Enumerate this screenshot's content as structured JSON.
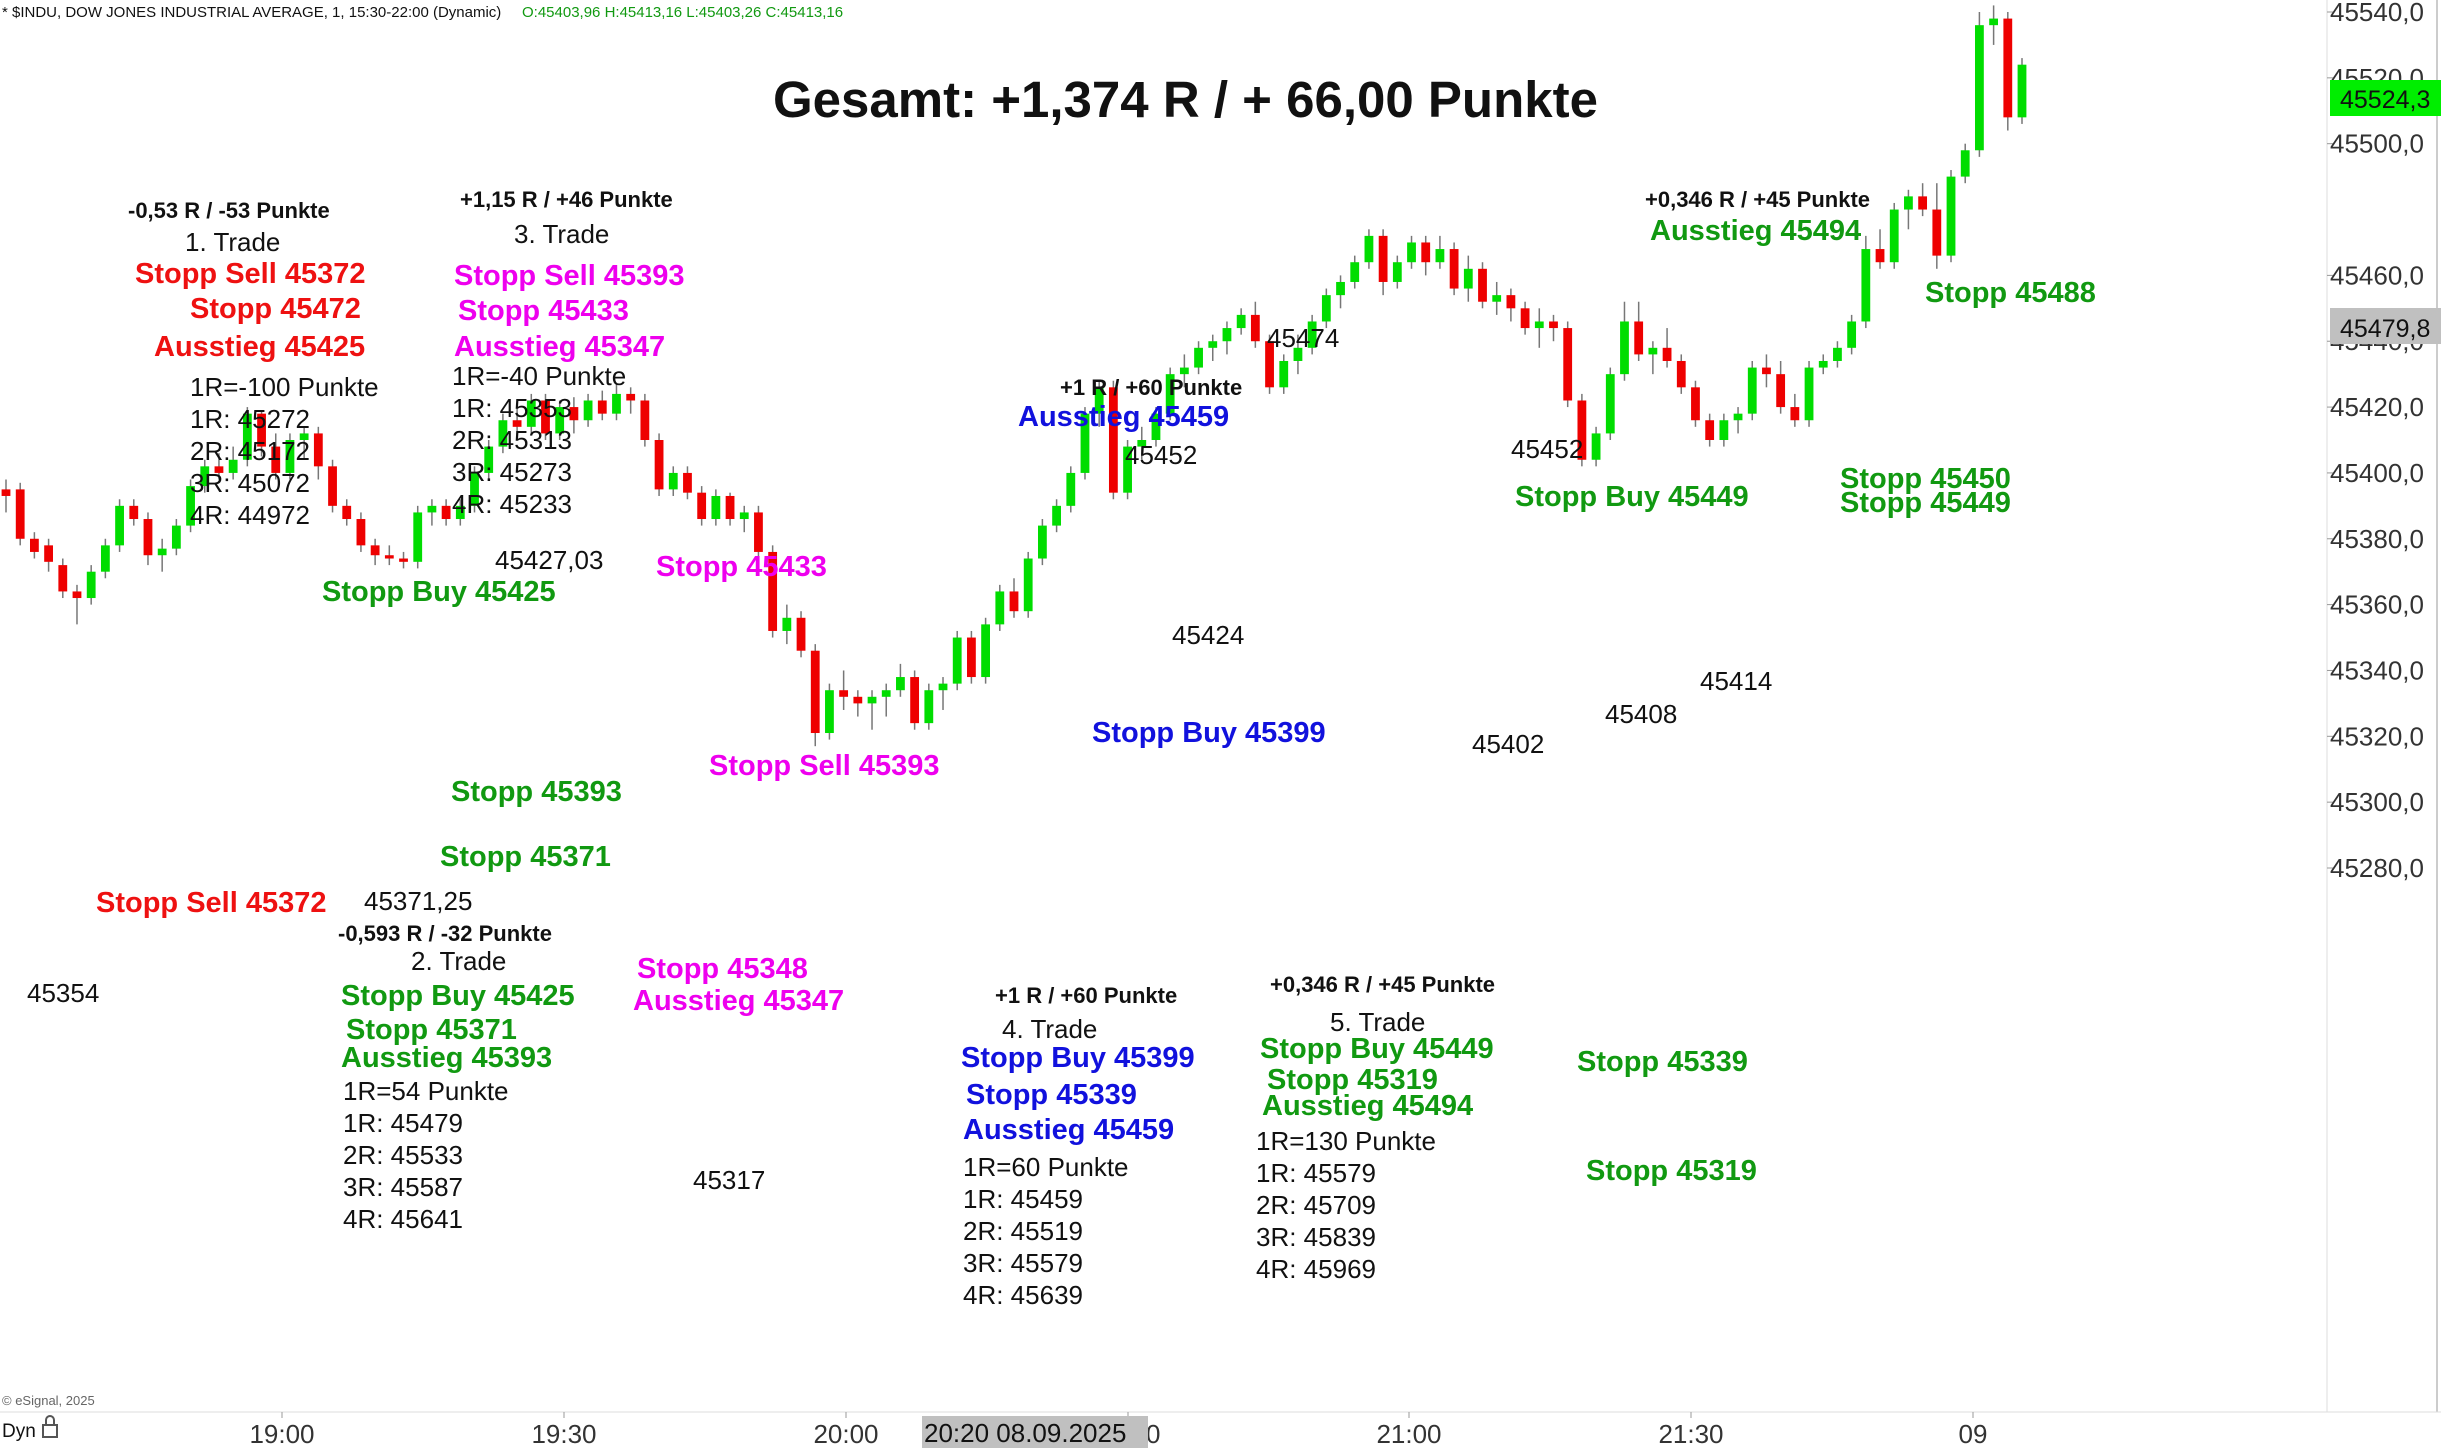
{
  "header": {
    "info_text": "* $INDU, DOW JONES INDUSTRIAL AVERAGE, 1, 15:30-22:00 (Dynamic)",
    "ohlc_text": "O:45403,96 H:45413,16 L:45403,26 C:45413,16",
    "copyright": "© eSignal, 2025",
    "dyn_label": "Dyn"
  },
  "colors": {
    "up": "#00dd00",
    "down": "#ee0000",
    "green_text": "#119911",
    "red_text": "#ee1111",
    "magenta_text": "#ee00ee",
    "blue_text": "#1111dd",
    "black_text": "#111111",
    "price_marker_bg": "#00ee00",
    "crosshair_marker_bg": "#c0c0c0"
  },
  "price_markers": {
    "last_price": "45524,3",
    "crosshair_price": "45479,8"
  },
  "crosshair_time": "20:20 08.09.2025",
  "chart_data": {
    "type": "candlestick",
    "title": "Gesamt: +1,374 R / + 66,00 Punkte",
    "symbol": "$INDU",
    "interval": "1 minute",
    "ylim": [
      45272,
      45546
    ],
    "y_ticks": [
      "45540,0",
      "45520,0",
      "45500,0",
      "45460,0",
      "45440,0",
      "45420,0",
      "45400,0",
      "45380,0",
      "45360,0",
      "45340,0",
      "45320,0",
      "45300,0",
      "45280,0"
    ],
    "x_ticks": [
      "19:00",
      "19:30",
      "20:00",
      "20:30",
      "21:00",
      "21:30",
      "09"
    ],
    "grid": false,
    "candles": [
      {
        "o": 45395,
        "h": 45398,
        "l": 45388,
        "c": 45393
      },
      {
        "o": 45395,
        "h": 45397,
        "l": 45378,
        "c": 45380
      },
      {
        "o": 45380,
        "h": 45382,
        "l": 45374,
        "c": 45376
      },
      {
        "o": 45378,
        "h": 45380,
        "l": 45370,
        "c": 45373
      },
      {
        "o": 45372,
        "h": 45374,
        "l": 45362,
        "c": 45364
      },
      {
        "o": 45364,
        "h": 45366,
        "l": 45354,
        "c": 45362
      },
      {
        "o": 45362,
        "h": 45372,
        "l": 45360,
        "c": 45370
      },
      {
        "o": 45370,
        "h": 45380,
        "l": 45368,
        "c": 45378
      },
      {
        "o": 45378,
        "h": 45392,
        "l": 45376,
        "c": 45390
      },
      {
        "o": 45390,
        "h": 45392,
        "l": 45384,
        "c": 45386
      },
      {
        "o": 45386,
        "h": 45388,
        "l": 45372,
        "c": 45375
      },
      {
        "o": 45375,
        "h": 45380,
        "l": 45370,
        "c": 45377
      },
      {
        "o": 45377,
        "h": 45386,
        "l": 45375,
        "c": 45384
      },
      {
        "o": 45384,
        "h": 45398,
        "l": 45382,
        "c": 45396
      },
      {
        "o": 45396,
        "h": 45404,
        "l": 45394,
        "c": 45402
      },
      {
        "o": 45402,
        "h": 45406,
        "l": 45398,
        "c": 45400
      },
      {
        "o": 45400,
        "h": 45408,
        "l": 45398,
        "c": 45404
      },
      {
        "o": 45404,
        "h": 45420,
        "l": 45402,
        "c": 45418
      },
      {
        "o": 45418,
        "h": 45419,
        "l": 45405,
        "c": 45408
      },
      {
        "o": 45408,
        "h": 45412,
        "l": 45398,
        "c": 45400
      },
      {
        "o": 45400,
        "h": 45412,
        "l": 45398,
        "c": 45410
      },
      {
        "o": 45410,
        "h": 45414,
        "l": 45404,
        "c": 45412
      },
      {
        "o": 45412,
        "h": 45414,
        "l": 45398,
        "c": 45402
      },
      {
        "o": 45402,
        "h": 45404,
        "l": 45388,
        "c": 45390
      },
      {
        "o": 45390,
        "h": 45392,
        "l": 45384,
        "c": 45386
      },
      {
        "o": 45386,
        "h": 45388,
        "l": 45376,
        "c": 45378
      },
      {
        "o": 45378,
        "h": 45380,
        "l": 45372,
        "c": 45375
      },
      {
        "o": 45375,
        "h": 45378,
        "l": 45372,
        "c": 45374
      },
      {
        "o": 45374,
        "h": 45376,
        "l": 45371,
        "c": 45373
      },
      {
        "o": 45373,
        "h": 45390,
        "l": 45371,
        "c": 45388
      },
      {
        "o": 45388,
        "h": 45392,
        "l": 45384,
        "c": 45390
      },
      {
        "o": 45390,
        "h": 45392,
        "l": 45384,
        "c": 45386
      },
      {
        "o": 45386,
        "h": 45392,
        "l": 45384,
        "c": 45390
      },
      {
        "o": 45390,
        "h": 45402,
        "l": 45388,
        "c": 45400
      },
      {
        "o": 45400,
        "h": 45410,
        "l": 45398,
        "c": 45408
      },
      {
        "o": 45408,
        "h": 45418,
        "l": 45406,
        "c": 45416
      },
      {
        "o": 45416,
        "h": 45420,
        "l": 45410,
        "c": 45414
      },
      {
        "o": 45414,
        "h": 45424,
        "l": 45412,
        "c": 45422
      },
      {
        "o": 45422,
        "h": 45424,
        "l": 45410,
        "c": 45412
      },
      {
        "o": 45412,
        "h": 45422,
        "l": 45410,
        "c": 45420
      },
      {
        "o": 45420,
        "h": 45423,
        "l": 45412,
        "c": 45416
      },
      {
        "o": 45416,
        "h": 45424,
        "l": 45414,
        "c": 45422
      },
      {
        "o": 45422,
        "h": 45425,
        "l": 45416,
        "c": 45418
      },
      {
        "o": 45418,
        "h": 45427,
        "l": 45416,
        "c": 45424
      },
      {
        "o": 45424,
        "h": 45426,
        "l": 45418,
        "c": 45422
      },
      {
        "o": 45422,
        "h": 45424,
        "l": 45408,
        "c": 45410
      },
      {
        "o": 45410,
        "h": 45412,
        "l": 45393,
        "c": 45395
      },
      {
        "o": 45395,
        "h": 45402,
        "l": 45393,
        "c": 45400
      },
      {
        "o": 45400,
        "h": 45402,
        "l": 45392,
        "c": 45394
      },
      {
        "o": 45394,
        "h": 45396,
        "l": 45384,
        "c": 45386
      },
      {
        "o": 45386,
        "h": 45395,
        "l": 45384,
        "c": 45393
      },
      {
        "o": 45393,
        "h": 45394,
        "l": 45384,
        "c": 45386
      },
      {
        "o": 45386,
        "h": 45390,
        "l": 45382,
        "c": 45388
      },
      {
        "o": 45388,
        "h": 45390,
        "l": 45374,
        "c": 45376
      },
      {
        "o": 45376,
        "h": 45378,
        "l": 45350,
        "c": 45352
      },
      {
        "o": 45352,
        "h": 45360,
        "l": 45348,
        "c": 45356
      },
      {
        "o": 45356,
        "h": 45358,
        "l": 45344,
        "c": 45346
      },
      {
        "o": 45346,
        "h": 45348,
        "l": 45317,
        "c": 45321
      },
      {
        "o": 45321,
        "h": 45336,
        "l": 45319,
        "c": 45334
      },
      {
        "o": 45334,
        "h": 45340,
        "l": 45328,
        "c": 45332
      },
      {
        "o": 45332,
        "h": 45334,
        "l": 45326,
        "c": 45330
      },
      {
        "o": 45330,
        "h": 45334,
        "l": 45322,
        "c": 45332
      },
      {
        "o": 45332,
        "h": 45336,
        "l": 45326,
        "c": 45334
      },
      {
        "o": 45334,
        "h": 45342,
        "l": 45332,
        "c": 45338
      },
      {
        "o": 45338,
        "h": 45340,
        "l": 45322,
        "c": 45324
      },
      {
        "o": 45324,
        "h": 45336,
        "l": 45322,
        "c": 45334
      },
      {
        "o": 45334,
        "h": 45338,
        "l": 45328,
        "c": 45336
      },
      {
        "o": 45336,
        "h": 45352,
        "l": 45334,
        "c": 45350
      },
      {
        "o": 45350,
        "h": 45352,
        "l": 45336,
        "c": 45338
      },
      {
        "o": 45338,
        "h": 45356,
        "l": 45336,
        "c": 45354
      },
      {
        "o": 45354,
        "h": 45366,
        "l": 45352,
        "c": 45364
      },
      {
        "o": 45364,
        "h": 45368,
        "l": 45356,
        "c": 45358
      },
      {
        "o": 45358,
        "h": 45376,
        "l": 45356,
        "c": 45374
      },
      {
        "o": 45374,
        "h": 45386,
        "l": 45372,
        "c": 45384
      },
      {
        "o": 45384,
        "h": 45392,
        "l": 45382,
        "c": 45390
      },
      {
        "o": 45390,
        "h": 45402,
        "l": 45388,
        "c": 45400
      },
      {
        "o": 45400,
        "h": 45420,
        "l": 45398,
        "c": 45418
      },
      {
        "o": 45418,
        "h": 45428,
        "l": 45414,
        "c": 45426
      },
      {
        "o": 45426,
        "h": 45428,
        "l": 45392,
        "c": 45394
      },
      {
        "o": 45394,
        "h": 45410,
        "l": 45392,
        "c": 45408
      },
      {
        "o": 45408,
        "h": 45414,
        "l": 45404,
        "c": 45410
      },
      {
        "o": 45410,
        "h": 45420,
        "l": 45408,
        "c": 45418
      },
      {
        "o": 45418,
        "h": 45432,
        "l": 45416,
        "c": 45430
      },
      {
        "o": 45430,
        "h": 45436,
        "l": 45426,
        "c": 45432
      },
      {
        "o": 45432,
        "h": 45440,
        "l": 45430,
        "c": 45438
      },
      {
        "o": 45438,
        "h": 45442,
        "l": 45434,
        "c": 45440
      },
      {
        "o": 45440,
        "h": 45446,
        "l": 45436,
        "c": 45444
      },
      {
        "o": 45444,
        "h": 45450,
        "l": 45442,
        "c": 45448
      },
      {
        "o": 45448,
        "h": 45452,
        "l": 45438,
        "c": 45440
      },
      {
        "o": 45440,
        "h": 45442,
        "l": 45424,
        "c": 45426
      },
      {
        "o": 45426,
        "h": 45436,
        "l": 45424,
        "c": 45434
      },
      {
        "o": 45434,
        "h": 45442,
        "l": 45430,
        "c": 45438
      },
      {
        "o": 45438,
        "h": 45448,
        "l": 45436,
        "c": 45446
      },
      {
        "o": 45446,
        "h": 45456,
        "l": 45444,
        "c": 45454
      },
      {
        "o": 45454,
        "h": 45460,
        "l": 45450,
        "c": 45458
      },
      {
        "o": 45458,
        "h": 45466,
        "l": 45456,
        "c": 45464
      },
      {
        "o": 45464,
        "h": 45474,
        "l": 45462,
        "c": 45472
      },
      {
        "o": 45472,
        "h": 45474,
        "l": 45454,
        "c": 45458
      },
      {
        "o": 45458,
        "h": 45466,
        "l": 45456,
        "c": 45464
      },
      {
        "o": 45464,
        "h": 45472,
        "l": 45462,
        "c": 45470
      },
      {
        "o": 45470,
        "h": 45472,
        "l": 45460,
        "c": 45464
      },
      {
        "o": 45464,
        "h": 45472,
        "l": 45462,
        "c": 45468
      },
      {
        "o": 45468,
        "h": 45470,
        "l": 45454,
        "c": 45456
      },
      {
        "o": 45456,
        "h": 45466,
        "l": 45452,
        "c": 45462
      },
      {
        "o": 45462,
        "h": 45464,
        "l": 45450,
        "c": 45452
      },
      {
        "o": 45452,
        "h": 45458,
        "l": 45448,
        "c": 45454
      },
      {
        "o": 45454,
        "h": 45456,
        "l": 45446,
        "c": 45450
      },
      {
        "o": 45450,
        "h": 45452,
        "l": 45442,
        "c": 45444
      },
      {
        "o": 45444,
        "h": 45450,
        "l": 45438,
        "c": 45446
      },
      {
        "o": 45446,
        "h": 45448,
        "l": 45440,
        "c": 45444
      },
      {
        "o": 45444,
        "h": 45446,
        "l": 45420,
        "c": 45422
      },
      {
        "o": 45422,
        "h": 45424,
        "l": 45402,
        "c": 45404
      },
      {
        "o": 45404,
        "h": 45414,
        "l": 45402,
        "c": 45412
      },
      {
        "o": 45412,
        "h": 45432,
        "l": 45410,
        "c": 45430
      },
      {
        "o": 45430,
        "h": 45452,
        "l": 45428,
        "c": 45446
      },
      {
        "o": 45446,
        "h": 45452,
        "l": 45434,
        "c": 45436
      },
      {
        "o": 45436,
        "h": 45440,
        "l": 45430,
        "c": 45438
      },
      {
        "o": 45438,
        "h": 45444,
        "l": 45432,
        "c": 45434
      },
      {
        "o": 45434,
        "h": 45436,
        "l": 45424,
        "c": 45426
      },
      {
        "o": 45426,
        "h": 45428,
        "l": 45414,
        "c": 45416
      },
      {
        "o": 45416,
        "h": 45418,
        "l": 45408,
        "c": 45410
      },
      {
        "o": 45410,
        "h": 45418,
        "l": 45408,
        "c": 45416
      },
      {
        "o": 45416,
        "h": 45420,
        "l": 45412,
        "c": 45418
      },
      {
        "o": 45418,
        "h": 45434,
        "l": 45416,
        "c": 45432
      },
      {
        "o": 45432,
        "h": 45436,
        "l": 45426,
        "c": 45430
      },
      {
        "o": 45430,
        "h": 45434,
        "l": 45418,
        "c": 45420
      },
      {
        "o": 45420,
        "h": 45424,
        "l": 45414,
        "c": 45416
      },
      {
        "o": 45416,
        "h": 45434,
        "l": 45414,
        "c": 45432
      },
      {
        "o": 45432,
        "h": 45436,
        "l": 45430,
        "c": 45434
      },
      {
        "o": 45434,
        "h": 45440,
        "l": 45432,
        "c": 45438
      },
      {
        "o": 45438,
        "h": 45448,
        "l": 45436,
        "c": 45446
      },
      {
        "o": 45446,
        "h": 45472,
        "l": 45444,
        "c": 45468
      },
      {
        "o": 45468,
        "h": 45474,
        "l": 45462,
        "c": 45464
      },
      {
        "o": 45464,
        "h": 45482,
        "l": 45462,
        "c": 45480
      },
      {
        "o": 45480,
        "h": 45486,
        "l": 45474,
        "c": 45484
      },
      {
        "o": 45484,
        "h": 45488,
        "l": 45478,
        "c": 45480
      },
      {
        "o": 45480,
        "h": 45488,
        "l": 45462,
        "c": 45466
      },
      {
        "o": 45466,
        "h": 45492,
        "l": 45464,
        "c": 45490
      },
      {
        "o": 45490,
        "h": 45500,
        "l": 45488,
        "c": 45498
      },
      {
        "o": 45498,
        "h": 45540,
        "l": 45496,
        "c": 45536
      },
      {
        "o": 45536,
        "h": 45542,
        "l": 45530,
        "c": 45538
      },
      {
        "o": 45538,
        "h": 45540,
        "l": 45504,
        "c": 45508
      },
      {
        "o": 45508,
        "h": 45526,
        "l": 45506,
        "c": 45524
      }
    ]
  },
  "annotations": {
    "summary": {
      "total": "Gesamt: +1,374 R / + 66,00 Punkte"
    },
    "trade1": {
      "result": "-0,53 R / -53 Punkte",
      "name": "1. Trade",
      "entry": "Stopp Sell 45372",
      "stop": "Stopp  45472",
      "exit": "Ausstieg 45425",
      "r_lines": [
        "1R=-100 Punkte",
        "1R: 45272",
        "2R: 45172",
        "3R: 45072",
        "4R: 44972"
      ]
    },
    "trade3": {
      "result": "+1,15 R / +46 Punkte",
      "name": "3. Trade",
      "entry": "Stopp Sell 45393",
      "stop": "Stopp 45433",
      "exit": "Ausstieg 45347",
      "r_lines": [
        "1R=-40 Punkte",
        "1R: 45353",
        "2R: 45313",
        "3R: 45273",
        "4R: 45233"
      ]
    },
    "trade2": {
      "result": "-0,593 R / -32 Punkte",
      "name": "2. Trade",
      "entry": "Stopp Buy 45425",
      "stop": "Stopp 45371",
      "exit": "Ausstieg 45393",
      "r_lines": [
        "1R=54 Punkte",
        "1R: 45479",
        "2R: 45533",
        "3R: 45587",
        "4R: 45641"
      ]
    },
    "trade4": {
      "result": "+1 R / +60 Punkte",
      "name": "4. Trade",
      "entry": "Stopp Buy 45399",
      "stop": "Stopp 45339",
      "exit": "Ausstieg 45459",
      "r_lines": [
        "1R=60 Punkte",
        "1R: 45459",
        "2R: 45519",
        "3R: 45579",
        "4R: 45639"
      ]
    },
    "trade5": {
      "result": "+0,346 R / +45 Punkte",
      "name": "5. Trade",
      "entry": "Stopp Buy 45449",
      "stop": "Stopp 45319",
      "exit": "Ausstieg 45494",
      "r_lines": [
        "1R=130 Punkte",
        "1R: 45579",
        "2R: 45709",
        "3R: 45839",
        "4R: 45969"
      ]
    },
    "chart_labels": {
      "low_45354": "45354",
      "stopp_sell_45372": "Stopp Sell 45372",
      "low_45371": "45371,25",
      "stopp_buy_45425": "Stopp Buy 45425",
      "high_45427": "45427,03",
      "stopp_45433": "Stopp 45433",
      "stopp_45393": "Stopp 45393",
      "stopp_45371": "Stopp 45371",
      "stopp_sell_45393": "Stopp Sell 45393",
      "stopp_45348": "Stopp 45348",
      "ausstieg_45347": "Ausstieg 45347",
      "low_45317": "45317",
      "trade4_result": "+1 R / +60 Punkte",
      "ausstieg_45459": "Ausstieg 45459",
      "high_45452a": "45452",
      "low_45424": "45424",
      "stopp_buy_45399": "Stopp Buy 45399",
      "high_45474": "45474",
      "high_45452b": "45452",
      "stopp_buy_45449": "Stopp Buy 45449",
      "low_45402": "45402",
      "low_45408": "45408",
      "low_45414": "45414",
      "trade5_result": "+0,346 R / +45 Punkte",
      "ausstieg_45494": "Ausstieg 45494",
      "stopp_45488": "Stopp 45488",
      "stopp_45450": "Stopp 45450",
      "stopp_45449": "Stopp 45449",
      "stopp_45339": "Stopp 45339",
      "stopp_45319": "Stopp 45319"
    }
  }
}
